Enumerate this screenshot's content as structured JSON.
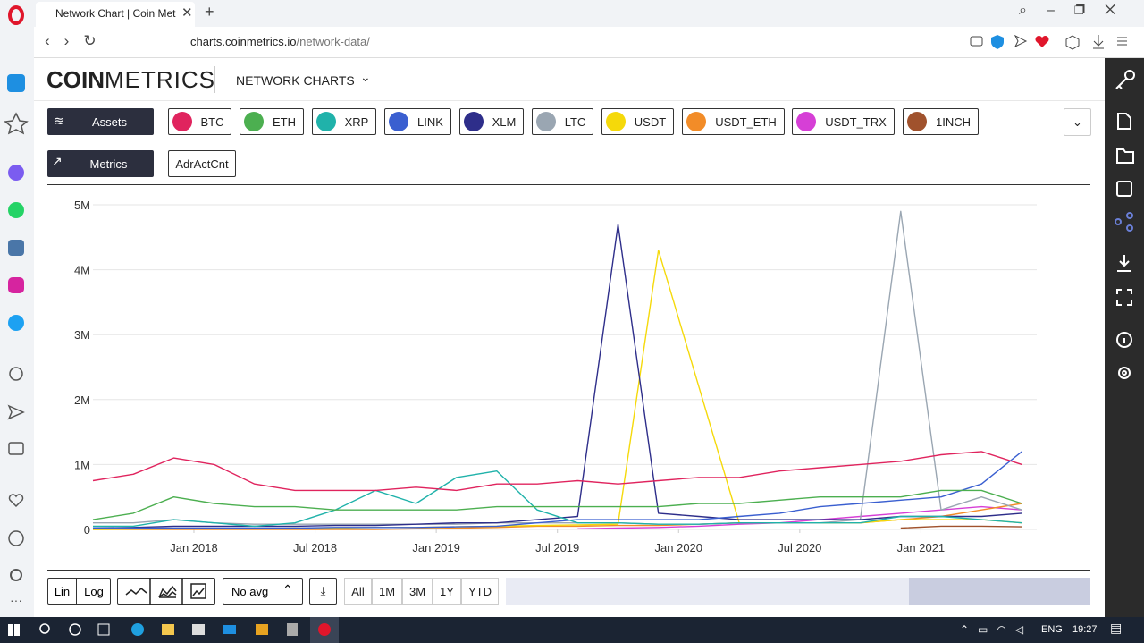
{
  "browser": {
    "tab_title": "Network Chart | Coin Metri",
    "url_host": "charts.coinmetrics.io",
    "url_path": "/network-data/"
  },
  "header": {
    "logo_bold": "COIN",
    "logo_light": "METRICS",
    "nav": "NETWORK CHARTS"
  },
  "toolbar": {
    "assets_button": "Assets",
    "metrics_button": "Metrics",
    "metric": "AdrActCnt"
  },
  "chart_data": {
    "type": "line",
    "x": [
      "2017-08",
      "2017-10",
      "2017-12",
      "2018-02",
      "2018-04",
      "2018-06",
      "2018-08",
      "2018-10",
      "2018-12",
      "2019-02",
      "2019-04",
      "2019-06",
      "2019-08",
      "2019-10",
      "2019-12",
      "2020-02",
      "2020-04",
      "2020-06",
      "2020-08",
      "2020-10",
      "2020-12",
      "2021-02",
      "2021-04",
      "2021-06"
    ],
    "xlim": [
      "2017-08",
      "2021-07"
    ],
    "xticks": [
      {
        "value": "2018-01",
        "label": "Jan 2018"
      },
      {
        "value": "2018-07",
        "label": "Jul 2018"
      },
      {
        "value": "2019-01",
        "label": "Jan 2019"
      },
      {
        "value": "2019-07",
        "label": "Jul 2019"
      },
      {
        "value": "2020-01",
        "label": "Jan 2020"
      },
      {
        "value": "2020-07",
        "label": "Jul 2020"
      },
      {
        "value": "2021-01",
        "label": "Jan 2021"
      }
    ],
    "ylim": [
      0,
      5000000
    ],
    "yticks": [
      0,
      {
        "value": 1000000,
        "label": "1M"
      },
      {
        "value": 2000000,
        "label": "2M"
      },
      {
        "value": 3000000,
        "label": "3M"
      },
      {
        "value": 4000000,
        "label": "4M"
      },
      {
        "value": 5000000,
        "label": "5M"
      }
    ],
    "grid": true,
    "series": [
      {
        "name": "BTC",
        "color": "#e0245e",
        "values": [
          750000,
          850000,
          1100000,
          1000000,
          700000,
          600000,
          600000,
          600000,
          650000,
          600000,
          700000,
          700000,
          750000,
          700000,
          750000,
          800000,
          800000,
          900000,
          950000,
          1000000,
          1050000,
          1150000,
          1200000,
          1000000
        ]
      },
      {
        "name": "ETH",
        "color": "#4caf50",
        "values": [
          150000,
          250000,
          500000,
          400000,
          350000,
          350000,
          300000,
          300000,
          300000,
          300000,
          350000,
          350000,
          350000,
          350000,
          350000,
          400000,
          400000,
          450000,
          500000,
          500000,
          500000,
          600000,
          600000,
          400000
        ]
      },
      {
        "name": "XRP",
        "color": "#20b2aa",
        "values": [
          50000,
          50000,
          150000,
          100000,
          50000,
          100000,
          300000,
          600000,
          400000,
          800000,
          900000,
          300000,
          100000,
          100000,
          80000,
          80000,
          100000,
          100000,
          100000,
          100000,
          200000,
          200000,
          150000,
          100000
        ]
      },
      {
        "name": "LINK",
        "color": "#3a5fd0",
        "values": [
          20000,
          20000,
          20000,
          20000,
          20000,
          20000,
          30000,
          30000,
          30000,
          40000,
          50000,
          100000,
          150000,
          150000,
          150000,
          150000,
          200000,
          250000,
          350000,
          400000,
          450000,
          500000,
          700000,
          1200000
        ]
      },
      {
        "name": "XLM",
        "color": "#2e2e8a",
        "values": [
          20000,
          30000,
          50000,
          50000,
          50000,
          50000,
          60000,
          60000,
          80000,
          100000,
          100000,
          150000,
          200000,
          4700000,
          250000,
          200000,
          150000,
          150000,
          150000,
          150000,
          200000,
          200000,
          200000,
          250000
        ]
      },
      {
        "name": "LTC",
        "color": "#9aa6b2",
        "values": [
          100000,
          100000,
          150000,
          100000,
          80000,
          80000,
          80000,
          80000,
          80000,
          80000,
          100000,
          100000,
          100000,
          100000,
          80000,
          80000,
          100000,
          100000,
          100000,
          150000,
          4900000,
          300000,
          500000,
          300000
        ]
      },
      {
        "name": "USDT",
        "color": "#f5d90a",
        "values": [
          0,
          5000,
          10000,
          10000,
          10000,
          20000,
          20000,
          30000,
          30000,
          40000,
          50000,
          60000,
          70000,
          80000,
          4300000,
          2200000,
          100000,
          100000,
          100000,
          100000,
          150000,
          150000,
          150000,
          100000
        ]
      },
      {
        "name": "USDT_ETH",
        "color": "#f28c28",
        "values": [
          0,
          0,
          0,
          0,
          0,
          0,
          0,
          0,
          10000,
          20000,
          30000,
          50000,
          50000,
          60000,
          60000,
          80000,
          100000,
          100000,
          100000,
          100000,
          150000,
          200000,
          300000,
          400000
        ]
      },
      {
        "name": "USDT_TRX",
        "color": "#d63fd6",
        "values": [
          null,
          null,
          null,
          null,
          null,
          null,
          null,
          null,
          null,
          null,
          null,
          null,
          10000,
          20000,
          30000,
          50000,
          80000,
          100000,
          150000,
          200000,
          250000,
          300000,
          350000,
          300000
        ]
      },
      {
        "name": "1INCH",
        "color": "#a0522d",
        "values": [
          null,
          null,
          null,
          null,
          null,
          null,
          null,
          null,
          null,
          null,
          null,
          null,
          null,
          null,
          null,
          null,
          null,
          null,
          null,
          null,
          20000,
          50000,
          50000,
          40000
        ]
      }
    ]
  },
  "controls": {
    "scale": [
      "Lin",
      "Log"
    ],
    "average": "No avg",
    "ranges": [
      "All",
      "1M",
      "3M",
      "1Y",
      "YTD"
    ]
  },
  "taskbar": {
    "language": "ENG",
    "time": "19:27"
  }
}
